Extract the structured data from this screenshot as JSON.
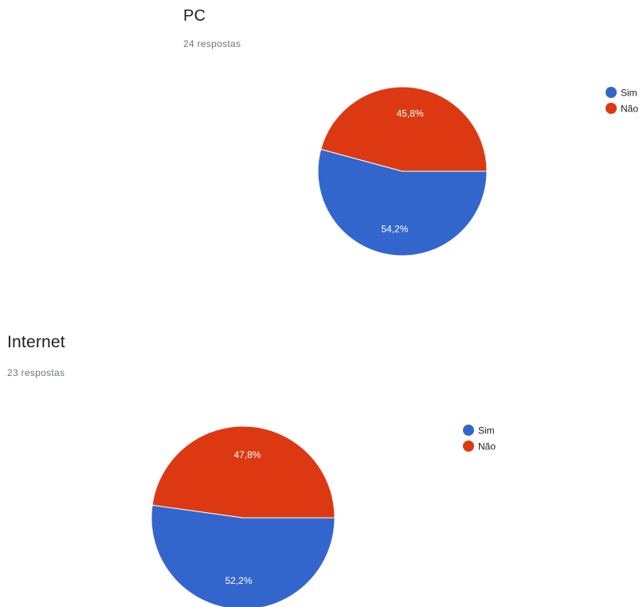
{
  "chart_data": [
    {
      "type": "pie",
      "title": "PC",
      "subtitle": "24 respostas",
      "categories": [
        "Sim",
        "Não"
      ],
      "values": [
        54.2,
        45.8
      ],
      "value_labels": [
        "54,2%",
        "45,8%"
      ],
      "colors": [
        "#3366cc",
        "#dc3912"
      ],
      "legend_position": "right"
    },
    {
      "type": "pie",
      "title": "Internet",
      "subtitle": "23 respostas",
      "categories": [
        "Sim",
        "Não"
      ],
      "values": [
        52.2,
        47.8
      ],
      "value_labels": [
        "52,2%",
        "47,8%"
      ],
      "colors": [
        "#3366cc",
        "#dc3912"
      ],
      "legend_position": "right"
    }
  ]
}
